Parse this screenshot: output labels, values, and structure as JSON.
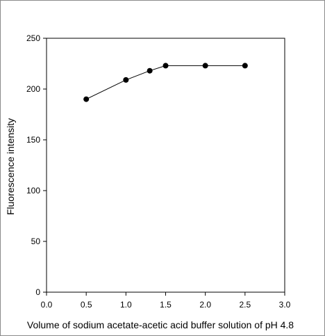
{
  "chart_data": {
    "type": "line",
    "title": "",
    "xlabel": "Volume of sodium acetate-acetic acid buffer solution of pH 4.8",
    "ylabel": "Fluorescence intensity",
    "xlim": [
      0.0,
      3.0
    ],
    "ylim": [
      0,
      250
    ],
    "xticks": [
      "0.0",
      "0.5",
      "1.0",
      "1.5",
      "2.0",
      "2.5",
      "3.0"
    ],
    "yticks": [
      "0",
      "50",
      "100",
      "150",
      "200",
      "250"
    ],
    "grid": false,
    "legend": "none",
    "series": [
      {
        "x": [
          0.5,
          1.0,
          1.3,
          1.5,
          2.0,
          2.5
        ],
        "values": [
          190,
          209,
          218,
          223,
          223,
          223
        ],
        "color": "#000000",
        "marker": "filled-circle"
      }
    ]
  }
}
